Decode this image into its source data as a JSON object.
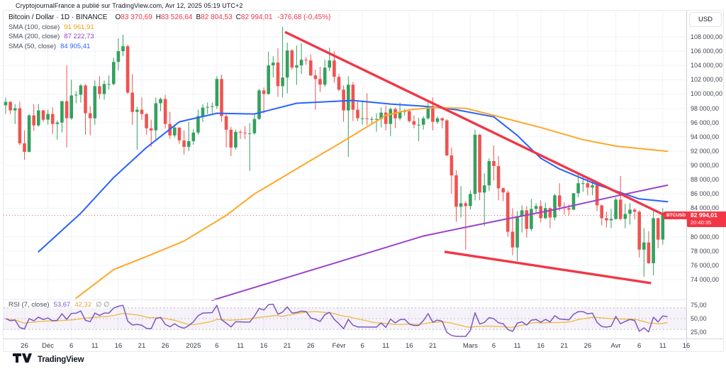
{
  "attribution": "CryptojournalFrance a publié sur TradingView.com, Avr 12, 2025 05:19 UTC+2",
  "colors": {
    "up": "#35a05e",
    "down": "#ef5350",
    "accent_red": "#f23645",
    "sma50": "#2962ff",
    "sma100": "#ffa726",
    "sma200": "#9c42c9",
    "rsi_line": "#7e57c2",
    "rsi_ma": "#f0b93b",
    "grid": "#f0f3fa",
    "band_fill": "rgba(126,87,194,0.08)",
    "band_line": "#787b86",
    "text_dark": "#131722",
    "text_gray": "#787b86"
  },
  "legend": {
    "symbol": "Bitcoin / Dollar · 1D · BINANCE",
    "ohlc": {
      "o_key": "O",
      "o_val": "83 370,69",
      "h_key": "H",
      "h_val": "83 526,64",
      "l_key": "B",
      "l_val": "82 804,53",
      "c_key": "C",
      "c_val": "82 994,01",
      "change": "-376,68 (-0,45%)"
    },
    "sma100_label": "SMA (100, close)",
    "sma100_value": "91 961,91",
    "sma200_label": "SMA (200, close)",
    "sma200_value": "87 222,73",
    "sma50_label": "SMA (50, close)",
    "sma50_value": "84 905,41"
  },
  "rsi_legend": {
    "label": "RSI (7, close)",
    "value": "53,67",
    "ma_value": "42,32",
    "empty": "∅ ∅"
  },
  "price_axis": {
    "currency": "USD",
    "last_price_label": "82 994,01",
    "countdown": "20:40:35",
    "symbol_tag": "BTCUSD",
    "ticks": [
      {
        "v": 108000,
        "label": "108 000,00"
      },
      {
        "v": 106000,
        "label": "106 000,00"
      },
      {
        "v": 104000,
        "label": "104 000,00"
      },
      {
        "v": 102000,
        "label": "102 000,00"
      },
      {
        "v": 100000,
        "label": "100 000,00"
      },
      {
        "v": 98000,
        "label": "98 000,00"
      },
      {
        "v": 96000,
        "label": "96 000,00"
      },
      {
        "v": 94000,
        "label": "94 000,00"
      },
      {
        "v": 92000,
        "label": "92 000,00"
      },
      {
        "v": 90000,
        "label": "90 000,00"
      },
      {
        "v": 88000,
        "label": "88 000,00"
      },
      {
        "v": 86000,
        "label": "86 000,00"
      },
      {
        "v": 84000,
        "label": "84 000,00"
      },
      {
        "v": 80000,
        "label": "80 000,00"
      },
      {
        "v": 78000,
        "label": "78 000,00"
      },
      {
        "v": 76000,
        "label": "76 000,00"
      },
      {
        "v": 74000,
        "label": "74 000,00"
      }
    ],
    "rsi_ticks": [
      {
        "v": 75,
        "label": "75,00"
      },
      {
        "v": 50,
        "label": "50,00"
      },
      {
        "v": 25,
        "label": "25,00"
      }
    ]
  },
  "time_axis": {
    "ticks": [
      {
        "i": 4,
        "label": "26"
      },
      {
        "i": 9,
        "label": "Déc"
      },
      {
        "i": 14,
        "label": "6"
      },
      {
        "i": 19,
        "label": "11"
      },
      {
        "i": 24,
        "label": "16"
      },
      {
        "i": 29,
        "label": "21"
      },
      {
        "i": 34,
        "label": "26"
      },
      {
        "i": 40,
        "label": "2025"
      },
      {
        "i": 45,
        "label": "6"
      },
      {
        "i": 50,
        "label": "11"
      },
      {
        "i": 55,
        "label": "16"
      },
      {
        "i": 60,
        "label": "21"
      },
      {
        "i": 65,
        "label": "26"
      },
      {
        "i": 71,
        "label": "Févr"
      },
      {
        "i": 76,
        "label": "6"
      },
      {
        "i": 81,
        "label": "11"
      },
      {
        "i": 86,
        "label": "16"
      },
      {
        "i": 91,
        "label": "21"
      },
      {
        "i": 99,
        "label": "Mars"
      },
      {
        "i": 104,
        "label": "6"
      },
      {
        "i": 109,
        "label": "11"
      },
      {
        "i": 114,
        "label": "16"
      },
      {
        "i": 119,
        "label": "21"
      },
      {
        "i": 124,
        "label": "26"
      },
      {
        "i": 130,
        "label": "Avr"
      },
      {
        "i": 135,
        "label": "6"
      },
      {
        "i": 140,
        "label": "11"
      },
      {
        "i": 145,
        "label": "16"
      }
    ]
  },
  "footer": {
    "brand": "TradingView"
  },
  "chart_data": {
    "type": "candlestick",
    "symbol": "Bitcoin / Dollar",
    "interval": "1D",
    "exchange": "BINANCE",
    "ylim": [
      74000,
      108000
    ],
    "last_price": 82994,
    "candles": [
      [
        98400,
        99500,
        97200,
        98900
      ],
      [
        98900,
        99000,
        97200,
        97700
      ],
      [
        97700,
        98600,
        95800,
        98000
      ],
      [
        98000,
        98900,
        92800,
        93100
      ],
      [
        93100,
        94900,
        90800,
        91900
      ],
      [
        91900,
        97200,
        91800,
        97000
      ],
      [
        97000,
        98600,
        94800,
        95600
      ],
      [
        95600,
        98600,
        95400,
        97700
      ],
      [
        97700,
        97800,
        96100,
        96400
      ],
      [
        96400,
        97800,
        95700,
        97200
      ],
      [
        97200,
        98100,
        94400,
        95800
      ],
      [
        95800,
        96300,
        93600,
        96000
      ],
      [
        96000,
        99000,
        94600,
        99000
      ],
      [
        99000,
        104000,
        92500,
        96600
      ],
      [
        96600,
        102000,
        96400,
        99800
      ],
      [
        99800,
        100400,
        98700,
        99900
      ],
      [
        99900,
        101400,
        98800,
        101200
      ],
      [
        101200,
        101400,
        94300,
        97300
      ],
      [
        97300,
        98300,
        94200,
        96600
      ],
      [
        96600,
        101900,
        95700,
        101100
      ],
      [
        101100,
        102500,
        99300,
        100000
      ],
      [
        100000,
        101900,
        99200,
        101400
      ],
      [
        101400,
        102600,
        100600,
        101400
      ],
      [
        101400,
        105100,
        101200,
        104500
      ],
      [
        104500,
        107800,
        103300,
        106000
      ],
      [
        106000,
        108300,
        105300,
        106700
      ],
      [
        106700,
        106900,
        100000,
        100200
      ],
      [
        100200,
        102800,
        95700,
        97500
      ],
      [
        97500,
        98200,
        92200,
        97800
      ],
      [
        97800,
        99500,
        96400,
        97200
      ],
      [
        97200,
        97300,
        94300,
        95200
      ],
      [
        95200,
        96400,
        92600,
        94900
      ],
      [
        94900,
        99500,
        93500,
        98700
      ],
      [
        98700,
        99500,
        97600,
        99300
      ],
      [
        99300,
        99900,
        95200,
        95800
      ],
      [
        95800,
        97500,
        93700,
        94200
      ],
      [
        94200,
        95700,
        93900,
        95300
      ],
      [
        95300,
        95300,
        93000,
        93500
      ],
      [
        93500,
        94900,
        91500,
        92600
      ],
      [
        92600,
        96100,
        92000,
        93400
      ],
      [
        93400,
        95100,
        92900,
        94600
      ],
      [
        94600,
        97800,
        94300,
        96900
      ],
      [
        96900,
        98600,
        96100,
        98100
      ],
      [
        98100,
        98800,
        97200,
        98200
      ],
      [
        98200,
        98800,
        97300,
        98300
      ],
      [
        98300,
        102500,
        97900,
        102100
      ],
      [
        102100,
        102700,
        96100,
        96900
      ],
      [
        96900,
        97200,
        92500,
        95000
      ],
      [
        95000,
        95400,
        91300,
        92500
      ],
      [
        92500,
        95000,
        92200,
        94700
      ],
      [
        94700,
        95000,
        93700,
        94600
      ],
      [
        94600,
        95500,
        93700,
        94500
      ],
      [
        94500,
        95900,
        89200,
        94500
      ],
      [
        94500,
        97100,
        94300,
        96500
      ],
      [
        96500,
        100700,
        96400,
        100500
      ],
      [
        100500,
        100900,
        97300,
        100000
      ],
      [
        100000,
        105900,
        99900,
        104000
      ],
      [
        104000,
        105300,
        102300,
        104400
      ],
      [
        104400,
        106400,
        99600,
        101100
      ],
      [
        101100,
        109400,
        99500,
        102300
      ],
      [
        102300,
        107200,
        100100,
        106100
      ],
      [
        106100,
        106300,
        103400,
        103700
      ],
      [
        103700,
        106800,
        101300,
        104000
      ],
      [
        104000,
        107100,
        102800,
        104800
      ],
      [
        104800,
        105200,
        104100,
        104700
      ],
      [
        104700,
        105500,
        102500,
        102600
      ],
      [
        102600,
        103400,
        97800,
        102100
      ],
      [
        102100,
        103800,
        100300,
        101300
      ],
      [
        101300,
        104800,
        101000,
        103700
      ],
      [
        103700,
        106500,
        103200,
        104700
      ],
      [
        104700,
        106000,
        101600,
        102400
      ],
      [
        102400,
        102800,
        100400,
        100600
      ],
      [
        100600,
        101200,
        96100,
        97700
      ],
      [
        97700,
        102500,
        91200,
        101300
      ],
      [
        101300,
        101700,
        96200,
        97800
      ],
      [
        97800,
        99100,
        96200,
        96600
      ],
      [
        96600,
        99100,
        95700,
        96600
      ],
      [
        96600,
        100100,
        95600,
        96500
      ],
      [
        96500,
        96800,
        95800,
        96500
      ],
      [
        96500,
        97300,
        94700,
        96500
      ],
      [
        96500,
        98100,
        95300,
        97400
      ],
      [
        97400,
        98400,
        94900,
        95800
      ],
      [
        95800,
        98100,
        94100,
        97900
      ],
      [
        97900,
        98100,
        95200,
        96600
      ],
      [
        96600,
        98800,
        96300,
        97500
      ],
      [
        97500,
        97900,
        97000,
        97600
      ],
      [
        97600,
        97700,
        96000,
        96200
      ],
      [
        96200,
        97000,
        95200,
        95700
      ],
      [
        95700,
        96700,
        93400,
        95700
      ],
      [
        95700,
        96900,
        95000,
        96600
      ],
      [
        96600,
        98800,
        96400,
        98300
      ],
      [
        98300,
        99500,
        94900,
        96100
      ],
      [
        96100,
        96900,
        95800,
        96600
      ],
      [
        96600,
        96700,
        95200,
        96300
      ],
      [
        96300,
        96500,
        91300,
        91400
      ],
      [
        91400,
        92500,
        86000,
        88600
      ],
      [
        88600,
        89300,
        82100,
        84200
      ],
      [
        84200,
        87100,
        82700,
        84700
      ],
      [
        84700,
        85000,
        78200,
        84300
      ],
      [
        84300,
        86500,
        83800,
        86000
      ],
      [
        86000,
        95000,
        85100,
        94300
      ],
      [
        94300,
        94400,
        85100,
        86200
      ],
      [
        86200,
        88900,
        81500,
        87200
      ],
      [
        87200,
        91000,
        86400,
        90600
      ],
      [
        90600,
        92800,
        87900,
        89900
      ],
      [
        89900,
        91300,
        85100,
        86800
      ],
      [
        86800,
        86900,
        85000,
        86200
      ],
      [
        86200,
        86500,
        80000,
        80700
      ],
      [
        80700,
        84000,
        77400,
        78500
      ],
      [
        78500,
        83600,
        76600,
        82900
      ],
      [
        82900,
        84400,
        80600,
        83700
      ],
      [
        83700,
        84300,
        79900,
        81100
      ],
      [
        81100,
        85300,
        80800,
        83900
      ],
      [
        83900,
        84700,
        83200,
        84300
      ],
      [
        84300,
        85100,
        82000,
        82600
      ],
      [
        82600,
        84800,
        82500,
        84000
      ],
      [
        84000,
        84100,
        81200,
        82700
      ],
      [
        82700,
        86000,
        82300,
        85800
      ],
      [
        85800,
        87500,
        83600,
        84200
      ],
      [
        84200,
        84800,
        83100,
        84000
      ],
      [
        84000,
        84500,
        83000,
        83800
      ],
      [
        83800,
        86100,
        83700,
        86100
      ],
      [
        86100,
        88800,
        85500,
        87500
      ],
      [
        87500,
        88500,
        86300,
        87500
      ],
      [
        87500,
        88300,
        85800,
        86900
      ],
      [
        86900,
        87800,
        85800,
        87200
      ],
      [
        87200,
        87500,
        83600,
        84400
      ],
      [
        84400,
        84500,
        81600,
        82600
      ],
      [
        82600,
        83500,
        81300,
        82300
      ],
      [
        82300,
        83900,
        81200,
        82500
      ],
      [
        82500,
        85500,
        82400,
        85200
      ],
      [
        85200,
        88500,
        82300,
        82500
      ],
      [
        82500,
        84600,
        81200,
        83200
      ],
      [
        83200,
        84700,
        81700,
        83800
      ],
      [
        83800,
        84000,
        82400,
        83500
      ],
      [
        83500,
        83700,
        77100,
        78200
      ],
      [
        78200,
        81200,
        74400,
        79200
      ],
      [
        79200,
        80800,
        76200,
        76300
      ],
      [
        76300,
        83600,
        74600,
        82600
      ],
      [
        82600,
        82700,
        78400,
        79600
      ],
      [
        79600,
        84000,
        78900,
        83400
      ],
      [
        83371,
        83527,
        82804,
        82994
      ]
    ],
    "overlays": [
      {
        "name": "SMA 50",
        "color": "#2962ff",
        "points": [
          [
            7,
            77900
          ],
          [
            16,
            83300
          ],
          [
            23,
            88300
          ],
          [
            30,
            92500
          ],
          [
            37,
            96100
          ],
          [
            45,
            97300
          ],
          [
            53,
            97200
          ],
          [
            62,
            98700
          ],
          [
            74,
            99100
          ],
          [
            82,
            98600
          ],
          [
            89,
            98300
          ],
          [
            96,
            97800
          ],
          [
            104,
            96800
          ],
          [
            109,
            94200
          ],
          [
            114,
            91000
          ],
          [
            118,
            89500
          ],
          [
            126,
            87300
          ],
          [
            135,
            85300
          ],
          [
            141,
            84905
          ]
        ]
      },
      {
        "name": "SMA 100",
        "color": "#ffa726",
        "points": [
          [
            15,
            71400
          ],
          [
            23,
            75400
          ],
          [
            31,
            77500
          ],
          [
            38,
            79400
          ],
          [
            47,
            83000
          ],
          [
            53,
            86000
          ],
          [
            64,
            90300
          ],
          [
            73,
            93800
          ],
          [
            81,
            97000
          ],
          [
            86,
            97800
          ],
          [
            91,
            98100
          ],
          [
            98,
            98000
          ],
          [
            104,
            97000
          ],
          [
            114,
            95300
          ],
          [
            123,
            93600
          ],
          [
            130,
            92700
          ],
          [
            141,
            91962
          ]
        ]
      },
      {
        "name": "SMA 200",
        "color": "#9c42c9",
        "points": [
          [
            44,
            71100
          ],
          [
            53,
            72900
          ],
          [
            70,
            76300
          ],
          [
            89,
            80100
          ],
          [
            97,
            81200
          ],
          [
            106,
            82400
          ],
          [
            117,
            83800
          ],
          [
            130,
            85700
          ],
          [
            141,
            87223
          ]
        ]
      }
    ],
    "trendlines": [
      {
        "i1": 59.5,
        "p1": 108700,
        "i2": 141.9,
        "p2": 82550
      },
      {
        "i1": 93.5,
        "p1": 77900,
        "i2": 137.5,
        "p2": 73500
      }
    ],
    "rsi": {
      "period": 7,
      "ma_period": 14,
      "upper_band": 70,
      "middle_band": 50,
      "lower_band": 30,
      "last_value": 53.67,
      "last_ma": 42.32
    }
  }
}
